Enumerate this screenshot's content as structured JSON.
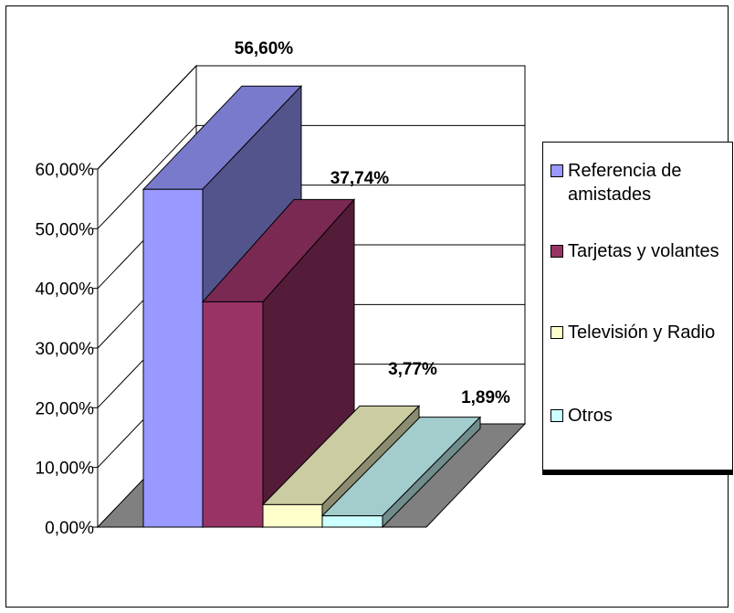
{
  "chart_data": {
    "type": "bar",
    "three_d": true,
    "categories": [
      "Referencia de amistades",
      "Tarjetas y volantes",
      "Televisión y Radio",
      "Otros"
    ],
    "values": [
      56.6,
      37.74,
      3.77,
      1.89
    ],
    "data_labels": [
      "56,60%",
      "37,74%",
      "3,77%",
      "1,89%"
    ],
    "colors": [
      "#9999ff",
      "#993366",
      "#ffffcc",
      "#ccffff"
    ],
    "ylim": [
      0,
      60
    ],
    "y_ticks": [
      0,
      10,
      20,
      30,
      40,
      50,
      60
    ],
    "y_tick_labels": [
      "0,00%",
      "10,00%",
      "20,00%",
      "30,00%",
      "40,00%",
      "50,00%",
      "60,00%"
    ],
    "grid": true,
    "legend_position": "right",
    "legend": [
      "Referencia de amistades",
      "Tarjetas y volantes",
      "Televisión y Radio",
      "Otros"
    ]
  }
}
